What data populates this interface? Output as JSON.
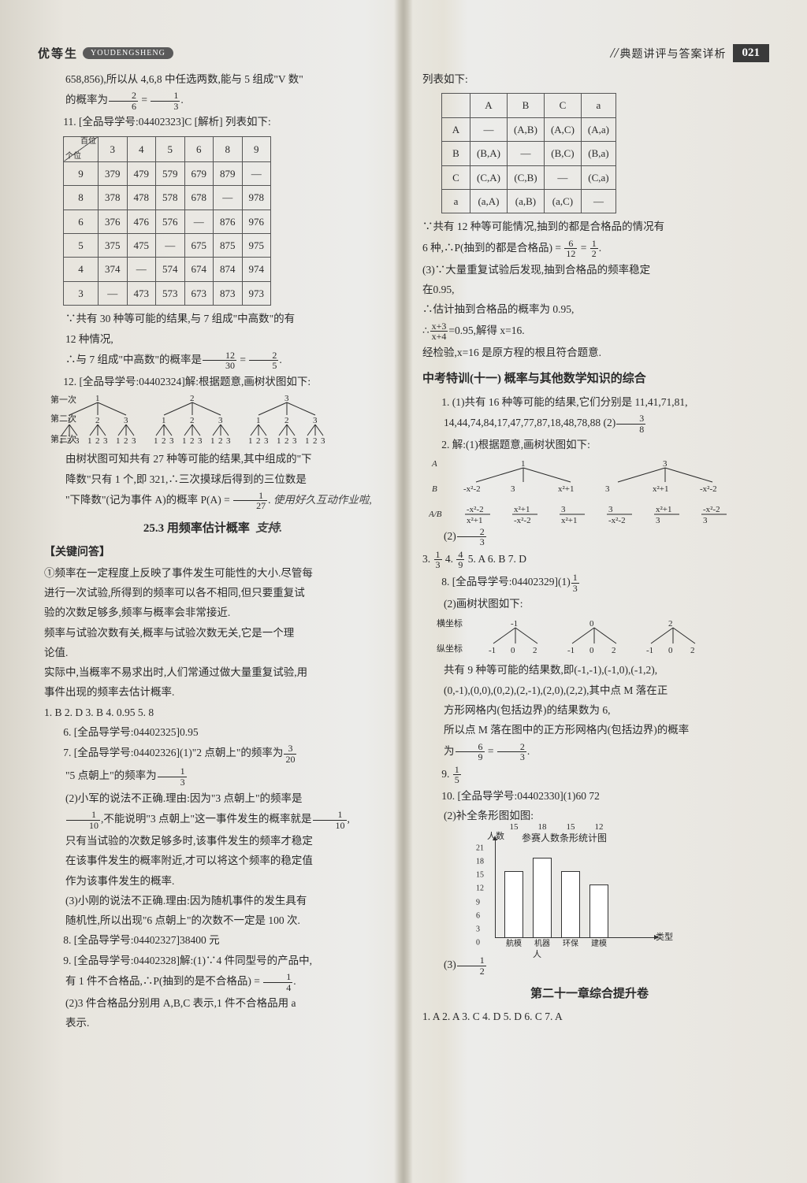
{
  "header": {
    "left_zh": "优等生",
    "left_py": "YOUDENGSHENG",
    "right_slash": "//",
    "right_txt": "典题讲评与答案详析",
    "page_num": "021"
  },
  "left": {
    "p1": "658,856),所以从 4,6,8 中任选两数,能与 5 组成\"V 数\"",
    "p1b_pre": "的概率为",
    "p1b_f1n": "2",
    "p1b_f1d": "6",
    "p1b_eq": " = ",
    "p1b_f2n": "1",
    "p1b_f2d": "3",
    "p1b_end": ".",
    "q11": "11. [全品导学号:04402323]C  [解析] 列表如下:",
    "tbl1_diag_a": "百位",
    "tbl1_diag_b": "个位",
    "tbl1_h": [
      "3",
      "4",
      "5",
      "6",
      "8",
      "9"
    ],
    "tbl1_rh": [
      "9",
      "8",
      "6",
      "5",
      "4",
      "3"
    ],
    "tbl1": [
      [
        "379",
        "479",
        "579",
        "679",
        "879",
        "—"
      ],
      [
        "378",
        "478",
        "578",
        "678",
        "—",
        "978"
      ],
      [
        "376",
        "476",
        "576",
        "—",
        "876",
        "976"
      ],
      [
        "375",
        "475",
        "—",
        "675",
        "875",
        "975"
      ],
      [
        "374",
        "—",
        "574",
        "674",
        "874",
        "974"
      ],
      [
        "—",
        "473",
        "573",
        "673",
        "873",
        "973"
      ]
    ],
    "p2": "∵共有 30 种等可能的结果,与 7 组成\"中高数\"的有",
    "p2b": "12 种情况,",
    "p3_pre": "∴与 7 组成\"中高数\"的概率是",
    "p3_f1n": "12",
    "p3_f1d": "30",
    "p3_eq": " = ",
    "p3_f2n": "2",
    "p3_f2d": "5",
    "p3_end": ".",
    "q12": "12. [全品导学号:04402324]解:根据题意,画树状图如下:",
    "tree12_labels": {
      "l1": "第一次",
      "l2": "第二次",
      "l3": "第三次"
    },
    "p4": "由树状图可知共有 27 种等可能的结果,其中组成的\"下",
    "p4b": "降数\"只有 1 个,即 321,∴三次摸球后得到的三位数是",
    "p5_pre": "\"下降数\"(记为事件 A)的概率 P(A) = ",
    "p5_fn": "1",
    "p5_fd": "27",
    "p5_end": ".",
    "handw1": "使用好久互动作业啦,",
    "handw2": "支持.",
    "sec253": "25.3  用频率估计概率",
    "key_q": "【关键问答】",
    "k1": "①频率在一定程度上反映了事件发生可能性的大小.尽管每",
    "k2": "进行一次试验,所得到的频率可以各不相同,但只要重复试",
    "k3": "验的次数足够多,频率与概率会非常接近.",
    "k4": "频率与试验次数有关,概率与试验次数无关,它是一个理",
    "k5": "论值.",
    "k6": "实际中,当概率不易求出时,人们常通过做大量重复试验,用",
    "k7": "事件出现的频率去估计概率.",
    "a_line": "1. B  2. D  3. B  4. 0.95  5. 8",
    "a6": "6. [全品导学号:04402325]0.95",
    "a7_pre": "7. [全品导学号:04402326](1)\"2 点朝上\"的频率为",
    "a7_fn": "3",
    "a7_fd": "20",
    "a7b_pre": "\"5 点朝上\"的频率为",
    "a7b_fn": "1",
    "a7b_fd": "3",
    "a7_2": "(2)小军的说法不正确.理由:因为\"3 点朝上\"的频率是",
    "a7_2b_f1n": "1",
    "a7_2b_f1d": "10",
    "a7_2b_mid": ",不能说明\"3 点朝上\"这一事件发生的概率就是",
    "a7_2b_f2n": "1",
    "a7_2b_f2d": "10",
    "a7_2b_end": ",",
    "a7_2c": "只有当试验的次数足够多时,该事件发生的频率才稳定",
    "a7_2d": "在该事件发生的概率附近,才可以将这个频率的稳定值",
    "a7_2e": "作为该事件发生的概率.",
    "a7_3": "(3)小刚的说法不正确.理由:因为随机事件的发生具有",
    "a7_3b": "随机性,所以出现\"6 点朝上\"的次数不一定是 100 次.",
    "a8": "8. [全品导学号:04402327]38400 元",
    "a9": "9. [全品导学号:04402328]解:(1)∵4 件同型号的产品中,",
    "a9b_pre": "有 1 件不合格品,∴P(抽到的是不合格品) = ",
    "a9b_fn": "1",
    "a9b_fd": "4",
    "a9b_end": ".",
    "a9_2": "(2)3 件合格品分别用 A,B,C 表示,1 件不合格品用 a",
    "a9_2b": "表示."
  },
  "right": {
    "p0": "列表如下:",
    "tbl2_h": [
      "",
      "A",
      "B",
      "C",
      "a"
    ],
    "tbl2": [
      [
        "A",
        "—",
        "(A,B)",
        "(A,C)",
        "(A,a)"
      ],
      [
        "B",
        "(B,A)",
        "—",
        "(B,C)",
        "(B,a)"
      ],
      [
        "C",
        "(C,A)",
        "(C,B)",
        "—",
        "(C,a)"
      ],
      [
        "a",
        "(a,A)",
        "(a,B)",
        "(a,C)",
        "—"
      ]
    ],
    "p1": "∵共有 12 种等可能情况,抽到的都是合格品的情况有",
    "p2_pre": "6 种,∴P(抽到的都是合格品) = ",
    "p2_f1n": "6",
    "p2_f1d": "12",
    "p2_eq": " = ",
    "p2_f2n": "1",
    "p2_f2d": "2",
    "p2_end": ".",
    "p3": "(3)∵大量重复试验后发现,抽到合格品的频率稳定",
    "p3b": "在0.95,",
    "p4": "∴估计抽到合格品的概率为 0.95,",
    "p5_pre": "∴",
    "p5_fn": "x+3",
    "p5_fd": "x+4",
    "p5_post": "=0.95,解得 x=16.",
    "p6": "经检验,x=16 是原方程的根且符合题意.",
    "zk_title": "中考特训(十一)  概率与其他数学知识的综合",
    "z1": "1. (1)共有 16 种等可能的结果,它们分别是 11,41,71,81,",
    "z1b_pre": "14,44,74,84,17,47,77,87,18,48,78,88  (2)",
    "z1b_fn": "3",
    "z1b_fd": "8",
    "z2": "2. 解:(1)根据题意,画树状图如下:",
    "tree2": {
      "rowA": "A",
      "rowB": "B",
      "rowAB": "A/B",
      "a_vals": [
        "1",
        "3"
      ],
      "b_vals": [
        "-x²-2",
        "3",
        "x²+1",
        "-x²-2"
      ],
      "ab_vals": [
        "-x²-2",
        "x²+1",
        " 3 ",
        " 3 ",
        "x²+1",
        "-x²-2"
      ],
      "ab_den": [
        "x²+1",
        "-x²-2",
        "x²+1",
        "-x²-2",
        " 3 ",
        " 3 "
      ]
    },
    "z2_2_pre": "(2)",
    "z2_2_fn": "2",
    "z2_2_fd": "3",
    "z3_pre": "3. ",
    "z3_fn": "1",
    "z3_fd": "3",
    "z4_pre": "  4. ",
    "z4_fn": "4",
    "z4_fd": "9",
    "z_rest": "  5. A  6. B  7. D",
    "z8_pre": "8. [全品导学号:04402329](1)",
    "z8_fn": "1",
    "z8_fd": "3",
    "z8_2": "(2)画树状图如下:",
    "tree8": {
      "row1": "横坐标",
      "row2": "纵坐标",
      "tops": [
        "-1",
        "0",
        "2"
      ],
      "leaves": [
        "-1",
        "0",
        "2",
        "-1",
        "0",
        "2",
        "-1",
        "0",
        "2"
      ]
    },
    "z8_3": "共有 9 种等可能的结果数,即(-1,-1),(-1,0),(-1,2),",
    "z8_4": "(0,-1),(0,0),(0,2),(2,-1),(2,0),(2,2),其中点 M 落在正",
    "z8_5": "方形网格内(包括边界)的结果数为 6,",
    "z8_6": "所以点 M 落在图中的正方形网格内(包括边界)的概率",
    "z8_7_pre": "为",
    "z8_7_f1n": "6",
    "z8_7_f1d": "9",
    "z8_7_eq": " = ",
    "z8_7_f2n": "2",
    "z8_7_f2d": "3",
    "z8_7_end": ".",
    "z9_pre": "9. ",
    "z9_fn": "1",
    "z9_fd": "5",
    "z10": "10. [全品导学号:04402330](1)60  72",
    "z10_2": "(2)补全条形图如图:",
    "chart": {
      "title": "参赛人数条形统计图",
      "ylab": "人数",
      "xlab": "类型",
      "ylab2": "人",
      "yticks": [
        0,
        3,
        6,
        9,
        12,
        15,
        18,
        21
      ],
      "ymax": 21,
      "cats": [
        "航模",
        "机器",
        "环保",
        "建模"
      ],
      "vals": [
        15,
        18,
        15,
        12
      ],
      "bar_colors": [
        "#ffffff",
        "#ffffff",
        "#ffffff",
        "#ffffff"
      ],
      "border": "#333333"
    },
    "z10_3_pre": "(3)",
    "z10_3_fn": "1",
    "z10_3_fd": "2",
    "ch21": "第二十一章综合提升卷",
    "ch21_ans": "1. A  2. A  3. C  4. D  5. D  6. C  7. A"
  }
}
